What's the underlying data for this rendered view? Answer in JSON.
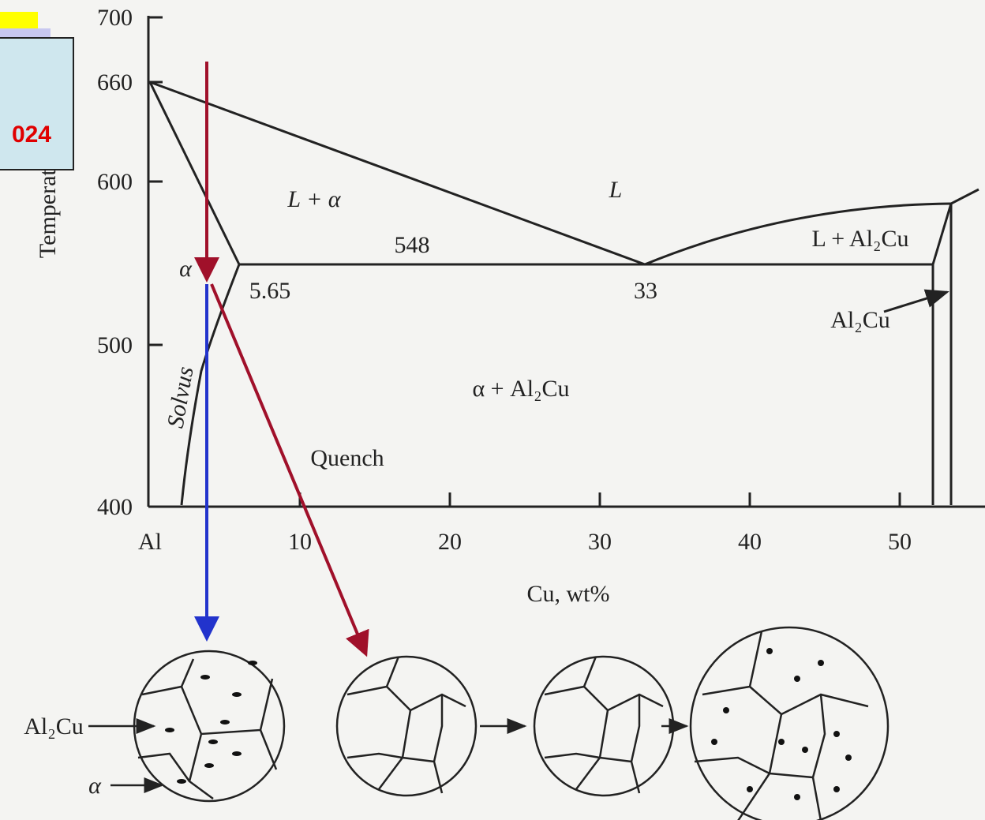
{
  "badge": {
    "text": "024"
  },
  "diagram": {
    "y_axis": {
      "label": "Temperature, °C",
      "ticks": [
        "700",
        "660",
        "600",
        "500",
        "400"
      ]
    },
    "x_axis": {
      "label": "Cu, wt%",
      "ticks": [
        "Al",
        "10",
        "20",
        "30",
        "40",
        "50"
      ]
    },
    "regions": [
      "L + α",
      "L",
      "L + Al₂Cu",
      "α",
      "α + Al₂Cu"
    ],
    "annotations": [
      "548",
      "5.65",
      "33",
      "Al₂Cu",
      "Solvus",
      "Quench"
    ],
    "micro_labels": [
      "Al₂Cu",
      "α"
    ]
  }
}
